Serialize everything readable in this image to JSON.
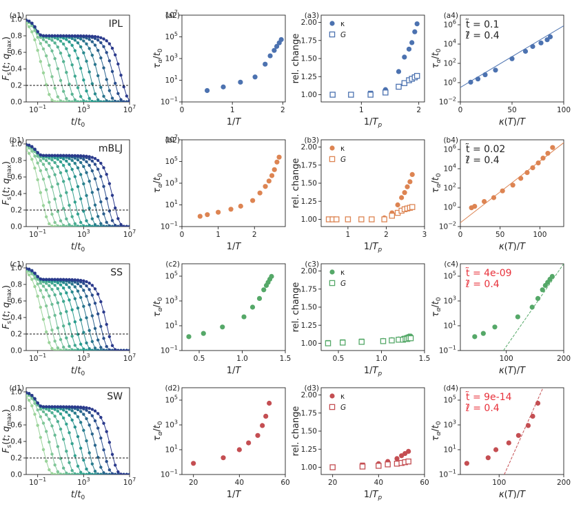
{
  "colors": {
    "IPL": "#4c72b0",
    "mBLJ": "#dd8452",
    "SS": "#55a868",
    "SW": "#c44e52",
    "ann_red": "#e8303a",
    "text": "#222222"
  },
  "chart_data": [
    {
      "panel": "a1",
      "type": "line",
      "label": "(a1)",
      "title": "IPL",
      "xlabel": "t/t0",
      "ylabel": "F_s(t; q_max)",
      "xscale": "log",
      "xlim": [
        0.01,
        10000000.0
      ],
      "ylim": [
        0,
        1.05
      ],
      "xticks": [
        "10^-1",
        "10^3",
        "10^7"
      ],
      "yticks": [
        "0.0",
        "0.2",
        "0.4",
        "0.6",
        "0.8",
        "1.0"
      ],
      "hline": 0.2,
      "series": [
        {
          "name": "curves",
          "plateau": 0.8,
          "log10_tau_first": -0.4,
          "log10_tau_last": 6.3,
          "n_curves": 11
        }
      ]
    },
    {
      "panel": "a2",
      "type": "scatter",
      "label": "(a2)",
      "xlabel": "1/T",
      "ylabel": "τα/t0",
      "xlim": [
        0,
        2.05
      ],
      "ylim_log10": [
        -1,
        7
      ],
      "xticks": [
        "0",
        "1",
        "2"
      ],
      "yticks": [
        "10^-1",
        "10^1",
        "10^3",
        "10^5",
        "10^7"
      ],
      "series": [
        {
          "name": "tau",
          "x": [
            0.5,
            0.82,
            1.16,
            1.45,
            1.65,
            1.75,
            1.83,
            1.88,
            1.93,
            1.97
          ],
          "log10_y": [
            0.05,
            0.38,
            0.82,
            1.3,
            2.48,
            3.25,
            3.75,
            4.12,
            4.45,
            4.75
          ]
        }
      ]
    },
    {
      "panel": "a3",
      "type": "scatter",
      "label": "(a3)",
      "xlabel": "1/T_p",
      "ylabel": "rel. change",
      "xlim": [
        0.3,
        2.1
      ],
      "ylim": [
        0.9,
        2.1
      ],
      "xticks": [
        "1",
        "2"
      ],
      "yticks": [
        "1.00",
        "1.25",
        "1.50",
        "1.75",
        "2.00"
      ],
      "legend": [
        "κ",
        "G"
      ],
      "series": [
        {
          "name": "κ",
          "x": [
            0.5,
            0.82,
            1.16,
            1.42,
            1.65,
            1.75,
            1.83,
            1.88,
            1.93,
            1.97
          ],
          "y": [
            1.0,
            1.0,
            1.02,
            1.07,
            1.32,
            1.52,
            1.63,
            1.72,
            1.87,
            1.98
          ]
        },
        {
          "name": "G",
          "x": [
            0.5,
            0.82,
            1.16,
            1.42,
            1.65,
            1.75,
            1.83,
            1.88,
            1.93,
            1.97
          ],
          "y": [
            1.0,
            1.0,
            1.0,
            1.03,
            1.11,
            1.16,
            1.2,
            1.22,
            1.24,
            1.26
          ]
        }
      ]
    },
    {
      "panel": "a4",
      "type": "scatter",
      "label": "(a4)",
      "xlabel": "κ(T)/T",
      "ylabel": "τα/t0",
      "xlim": [
        0,
        100
      ],
      "ylim_log10": [
        -2,
        7
      ],
      "xticks": [
        "0",
        "50",
        "100"
      ],
      "yticks": [
        "10^-2",
        "10^0",
        "10^2",
        "10^4",
        "10^6"
      ],
      "annotation": [
        "t̃ = 0.1",
        "ℓ̃ = 0.4"
      ],
      "annotation_color": "text",
      "series": [
        {
          "name": "tau",
          "x": [
            10,
            17,
            24,
            34,
            50,
            63,
            70,
            78,
            84,
            87
          ],
          "log10_y": [
            0.05,
            0.38,
            0.82,
            1.3,
            2.48,
            3.25,
            3.75,
            4.12,
            4.45,
            4.75
          ]
        }
      ],
      "fit": {
        "style": "solid",
        "log10_at_xmin": -0.5,
        "log10_at_xmax": 5.9
      }
    },
    {
      "panel": "b1",
      "type": "line",
      "label": "(b1)",
      "title": "mBLJ",
      "xlabel": "t/t0",
      "ylabel": "F_s(t; q_max)",
      "xscale": "log",
      "xlim": [
        0.01,
        10000000.0
      ],
      "ylim": [
        0,
        1.05
      ],
      "xticks": [
        "10^-1",
        "10^3",
        "10^7"
      ],
      "yticks": [
        "0.0",
        "0.2",
        "0.4",
        "0.6",
        "0.8",
        "1.0"
      ],
      "hline": 0.2,
      "series": [
        {
          "name": "curves",
          "plateau": 0.86,
          "log10_tau_first": -0.6,
          "log10_tau_last": 5.6,
          "n_curves": 12
        }
      ]
    },
    {
      "panel": "b2",
      "type": "scatter",
      "label": "(b2)",
      "xlabel": "1/T",
      "ylabel": "τα/t0",
      "xlim": [
        0,
        2.85
      ],
      "ylim_log10": [
        -1,
        7
      ],
      "xticks": [
        "0",
        "1",
        "2"
      ],
      "yticks": [
        "10^-1",
        "10^1",
        "10^3",
        "10^5",
        "10^7"
      ],
      "series": [
        {
          "name": "tau",
          "x": [
            0.5,
            0.7,
            1.0,
            1.35,
            1.62,
            1.95,
            2.15,
            2.3,
            2.4,
            2.48,
            2.55,
            2.62,
            2.68
          ],
          "log10_y": [
            -0.05,
            0.1,
            0.32,
            0.6,
            0.88,
            1.4,
            2.1,
            2.7,
            3.2,
            3.7,
            4.25,
            4.95,
            5.4
          ]
        }
      ]
    },
    {
      "panel": "b3",
      "type": "scatter",
      "label": "(b3)",
      "xlabel": "1/T_p",
      "ylabel": "rel. change",
      "xlim": [
        0.3,
        3.0
      ],
      "ylim": [
        0.9,
        2.1
      ],
      "xticks": [
        "1",
        "2",
        "3"
      ],
      "yticks": [
        "1.00",
        "1.25",
        "1.50",
        "1.75",
        "2.00"
      ],
      "legend": [
        "κ",
        "G"
      ],
      "series": [
        {
          "name": "κ",
          "x": [
            0.5,
            0.6,
            0.7,
            1.0,
            1.35,
            1.62,
            1.95,
            2.15,
            2.3,
            2.4,
            2.48,
            2.55,
            2.62,
            2.68
          ],
          "y": [
            1.0,
            1.0,
            1.0,
            1.0,
            1.0,
            1.0,
            1.02,
            1.09,
            1.2,
            1.3,
            1.37,
            1.45,
            1.52,
            1.62
          ]
        },
        {
          "name": "G",
          "x": [
            0.5,
            0.6,
            0.7,
            1.0,
            1.35,
            1.62,
            1.95,
            2.15,
            2.3,
            2.4,
            2.48,
            2.55,
            2.62,
            2.68
          ],
          "y": [
            1.0,
            1.0,
            1.0,
            1.0,
            1.0,
            1.0,
            1.0,
            1.05,
            1.09,
            1.12,
            1.14,
            1.15,
            1.16,
            1.17
          ]
        }
      ]
    },
    {
      "panel": "b4",
      "type": "scatter",
      "label": "(b4)",
      "xlabel": "κ(T)/T",
      "ylabel": "τα/t0",
      "xlim": [
        0,
        130
      ],
      "ylim_log10": [
        -2,
        7
      ],
      "xticks": [
        "0",
        "50",
        "100"
      ],
      "yticks": [
        "10^-2",
        "10^0",
        "10^2",
        "10^4",
        "10^6"
      ],
      "annotation": [
        "t̃ = 0.02",
        "ℓ̃ = 0.4"
      ],
      "annotation_color": "text",
      "series": [
        {
          "name": "tau",
          "x": [
            14,
            18,
            30,
            42,
            53,
            66,
            76,
            84,
            91,
            98,
            104,
            110,
            116
          ],
          "log10_y": [
            -0.05,
            0.1,
            0.6,
            1.0,
            1.7,
            2.3,
            3.0,
            3.6,
            4.1,
            4.6,
            5.1,
            5.6,
            6.2
          ]
        }
      ],
      "fit": {
        "style": "solid",
        "log10_at_xmin": -1.6,
        "log10_at_xmax": 6.7
      }
    },
    {
      "panel": "c1",
      "type": "line",
      "label": "(c1)",
      "title": "SS",
      "xlabel": "t/t0",
      "ylabel": "F_s(t; q_max)",
      "xscale": "log",
      "xlim": [
        0.01,
        10000000.0
      ],
      "ylim": [
        0,
        1.05
      ],
      "xticks": [
        "10^-1",
        "10^3",
        "10^7"
      ],
      "yticks": [
        "0.0",
        "0.2",
        "0.4",
        "0.6",
        "0.8",
        "1.0"
      ],
      "hline": 0.2,
      "series": [
        {
          "name": "curves",
          "plateau": 0.86,
          "log10_tau_first": -0.4,
          "log10_tau_last": 5.0,
          "n_curves": 11
        }
      ]
    },
    {
      "panel": "c2",
      "type": "scatter",
      "label": "(c2)",
      "xlabel": "1/T",
      "ylabel": "τα/t0",
      "xlim": [
        0.3,
        1.5
      ],
      "ylim_log10": [
        -1,
        6
      ],
      "xticks": [
        "0.5",
        "1.0",
        "1.5"
      ],
      "yticks": [
        "10^-1",
        "10^1",
        "10^3",
        "10^5"
      ],
      "series": [
        {
          "name": "tau",
          "x": [
            0.38,
            0.55,
            0.77,
            1.02,
            1.12,
            1.2,
            1.25,
            1.28,
            1.3,
            1.32,
            1.34
          ],
          "log10_y": [
            0.12,
            0.38,
            0.9,
            1.72,
            2.5,
            3.2,
            3.9,
            4.25,
            4.5,
            4.75,
            4.98
          ]
        }
      ]
    },
    {
      "panel": "c3",
      "type": "scatter",
      "label": "(c3)",
      "xlabel": "1/T_p",
      "ylabel": "rel. change",
      "xlim": [
        0.3,
        1.5
      ],
      "ylim": [
        0.9,
        2.1
      ],
      "xticks": [
        "0.5",
        "1.0",
        "1.5"
      ],
      "yticks": [
        "1.00",
        "1.25",
        "1.50",
        "1.75",
        "2.00"
      ],
      "legend": [
        "κ",
        "G"
      ],
      "series": [
        {
          "name": "κ",
          "x": [
            0.38,
            0.55,
            0.77,
            1.02,
            1.12,
            1.2,
            1.25,
            1.28,
            1.3,
            1.32,
            1.34
          ],
          "y": [
            1.01,
            1.02,
            1.03,
            1.04,
            1.05,
            1.06,
            1.07,
            1.08,
            1.09,
            1.1,
            1.1
          ]
        },
        {
          "name": "G",
          "x": [
            0.38,
            0.55,
            0.77,
            1.02,
            1.12,
            1.2,
            1.25,
            1.28,
            1.3,
            1.32,
            1.34
          ],
          "y": [
            1.0,
            1.01,
            1.02,
            1.03,
            1.04,
            1.05,
            1.05,
            1.06,
            1.06,
            1.07,
            1.07
          ]
        }
      ]
    },
    {
      "panel": "c4",
      "type": "scatter",
      "label": "(c4)",
      "xlabel": "κ(T)/T",
      "ylabel": "τα/t0",
      "xlim": [
        20,
        200
      ],
      "ylim_log10": [
        -1,
        6
      ],
      "xticks": [
        "100",
        "200"
      ],
      "yticks": [
        "10^-1",
        "10^1",
        "10^3",
        "10^5"
      ],
      "annotation": [
        "t̃ = 4e-09",
        "ℓ̃ = 0.4"
      ],
      "annotation_color": "ann_red",
      "series": [
        {
          "name": "tau",
          "x": [
            45,
            60,
            80,
            120,
            145,
            155,
            163,
            168,
            172,
            176,
            180
          ],
          "log10_y": [
            0.12,
            0.38,
            0.9,
            1.72,
            2.5,
            3.2,
            3.9,
            4.25,
            4.5,
            4.75,
            4.98
          ]
        }
      ],
      "fit": {
        "style": "dashed",
        "x_start": 95,
        "x_end": 200,
        "log10_start": -1,
        "log10_end": 6
      }
    },
    {
      "panel": "d1",
      "type": "line",
      "label": "(d1)",
      "title": "SW",
      "xlabel": "t/t0",
      "ylabel": "F_s(t; q_max)",
      "xscale": "log",
      "xlim": [
        0.01,
        10000000.0
      ],
      "ylim": [
        0,
        1.05
      ],
      "xticks": [
        "10^-1",
        "10^3",
        "10^7"
      ],
      "yticks": [
        "0.0",
        "0.2",
        "0.4",
        "0.6",
        "0.8",
        "1.0"
      ],
      "hline": 0.2,
      "series": [
        {
          "name": "curves",
          "plateau": 0.82,
          "log10_tau_first": -0.5,
          "log10_tau_last": 5.4,
          "n_curves": 10
        }
      ]
    },
    {
      "panel": "d2",
      "type": "scatter",
      "label": "(d2)",
      "xlabel": "1/T",
      "ylabel": "τα/t0",
      "xlim": [
        15,
        60
      ],
      "ylim_log10": [
        -1,
        6
      ],
      "xticks": [
        "20",
        "40",
        "60"
      ],
      "yticks": [
        "10^-1",
        "10^1",
        "10^3",
        "10^5"
      ],
      "series": [
        {
          "name": "tau",
          "x": [
            20,
            33,
            40,
            44,
            48,
            50,
            51.5,
            53
          ],
          "log10_y": [
            -0.1,
            0.35,
            1.0,
            1.55,
            2.15,
            2.95,
            3.7,
            4.75
          ]
        }
      ]
    },
    {
      "panel": "d3",
      "type": "scatter",
      "label": "(d3)",
      "xlabel": "1/T_p",
      "ylabel": "rel. change",
      "xlim": [
        15,
        60
      ],
      "ylim": [
        0.9,
        2.1
      ],
      "xticks": [
        "20",
        "40",
        "60"
      ],
      "yticks": [
        "1.00",
        "1.25",
        "1.50",
        "1.75",
        "2.00"
      ],
      "legend": [
        "κ",
        "G"
      ],
      "series": [
        {
          "name": "κ",
          "x": [
            20,
            33,
            40,
            44,
            48,
            50,
            51.5,
            53
          ],
          "y": [
            1.0,
            1.03,
            1.05,
            1.08,
            1.12,
            1.16,
            1.19,
            1.22
          ]
        },
        {
          "name": "G",
          "x": [
            20,
            33,
            40,
            44,
            48,
            50,
            51.5,
            53
          ],
          "y": [
            1.0,
            1.01,
            1.02,
            1.04,
            1.05,
            1.06,
            1.07,
            1.08
          ]
        }
      ]
    },
    {
      "panel": "d4",
      "type": "scatter",
      "label": "(d4)",
      "xlabel": "κ(T)/T",
      "ylabel": "τα/t0",
      "xlim": [
        40,
        200
      ],
      "ylim_log10": [
        -1,
        6
      ],
      "xticks": [
        "100",
        "200"
      ],
      "yticks": [
        "10^-1",
        "10^1",
        "10^3",
        "10^5"
      ],
      "annotation": [
        "t̃ = 9e-14",
        "ℓ̃ = 0.4"
      ],
      "annotation_color": "ann_red",
      "series": [
        {
          "name": "tau",
          "x": [
            50,
            83,
            95,
            115,
            130,
            145,
            152,
            160
          ],
          "log10_y": [
            -0.1,
            0.35,
            1.0,
            1.55,
            2.15,
            2.95,
            3.7,
            4.75
          ]
        }
      ],
      "fit": {
        "style": "dashed",
        "x_start": 108,
        "x_end": 168,
        "log10_start": -1,
        "log10_end": 6
      }
    }
  ]
}
